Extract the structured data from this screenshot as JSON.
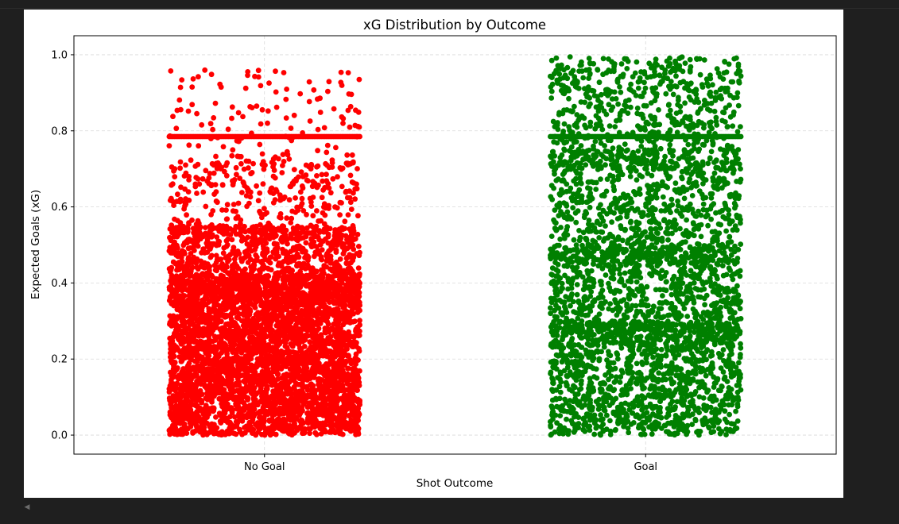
{
  "colors": {
    "page_background": "#1f1f1f",
    "figure_background": "#ffffff",
    "no_goal_points": "#ff0000",
    "goal_points": "#008000",
    "grid": "#d9d9d9",
    "axis": "#000000"
  },
  "scroll": {
    "left_arrow_icon": "scroll-left-arrow-icon",
    "left_glyph": "◀"
  },
  "chart_data": {
    "type": "scatter",
    "title": "xG Distribution by Outcome",
    "xlabel": "Shot Outcome",
    "ylabel": "Expected Goals (xG)",
    "categories": [
      "No Goal",
      "Goal"
    ],
    "ylim": [
      -0.05,
      1.05
    ],
    "yticks": [
      0.0,
      0.2,
      0.4,
      0.6,
      0.8,
      1.0
    ],
    "ytick_labels": [
      "0.0",
      "0.2",
      "0.4",
      "0.6",
      "0.8",
      "1.0"
    ],
    "grid": true,
    "grid_style": "dashed",
    "jitter": 0.25,
    "legend": "none",
    "series": [
      {
        "category": "No Goal",
        "color": "#ff0000",
        "distribution": "dense 0.0–0.4, thinning 0.4–0.7, sparse 0.7–0.96",
        "constant_band_xg": 0.785,
        "max_xg": 0.96
      },
      {
        "category": "Goal",
        "color": "#008000",
        "distribution": "dense 0.0–0.3, spread through 0.3–1.0",
        "constant_band_xg": 0.785,
        "max_xg": 0.995
      }
    ]
  }
}
